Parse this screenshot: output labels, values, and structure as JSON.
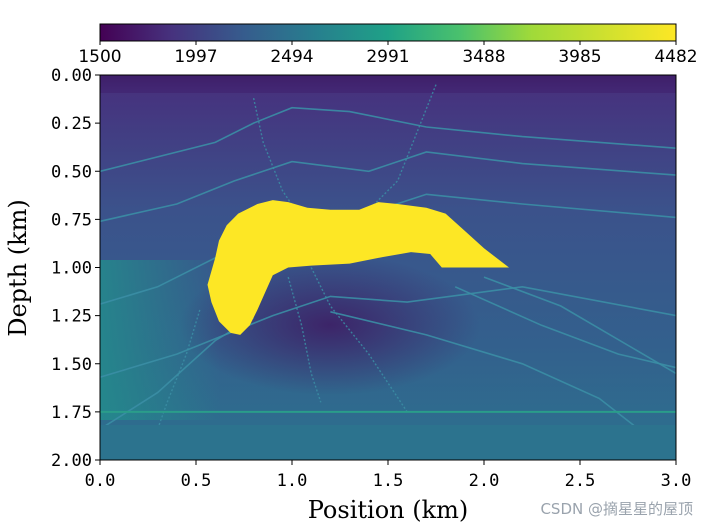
{
  "chart_data": {
    "type": "heatmap",
    "title": "",
    "xlabel": "Position (km)",
    "ylabel": "Depth (km)",
    "xlim": [
      0.0,
      3.0
    ],
    "ylim": [
      2.0,
      0.0
    ],
    "x_ticks": [
      "0.0",
      "0.5",
      "1.0",
      "1.5",
      "2.0",
      "2.5",
      "3.0"
    ],
    "y_ticks": [
      "0.00",
      "0.25",
      "0.50",
      "0.75",
      "1.00",
      "1.25",
      "1.50",
      "1.75",
      "2.00"
    ],
    "colorbar": {
      "colormap": "viridis",
      "location": "top",
      "min": 1500,
      "max": 4482,
      "ticks": [
        "1500",
        "1997",
        "2494",
        "2991",
        "3488",
        "3985",
        "4482"
      ]
    },
    "salt_body": {
      "label": "high-velocity salt body",
      "velocity": 4482,
      "outline_km": [
        [
          0.56,
          1.09
        ],
        [
          0.6,
          0.95
        ],
        [
          0.62,
          0.86
        ],
        [
          0.66,
          0.78
        ],
        [
          0.72,
          0.72
        ],
        [
          0.82,
          0.67
        ],
        [
          0.9,
          0.65
        ],
        [
          0.98,
          0.66
        ],
        [
          1.08,
          0.69
        ],
        [
          1.2,
          0.7
        ],
        [
          1.35,
          0.7
        ],
        [
          1.45,
          0.66
        ],
        [
          1.55,
          0.67
        ],
        [
          1.7,
          0.69
        ],
        [
          1.8,
          0.72
        ],
        [
          1.9,
          0.81
        ],
        [
          2.0,
          0.9
        ],
        [
          2.13,
          1.0
        ],
        [
          1.78,
          1.0
        ],
        [
          1.72,
          0.93
        ],
        [
          1.62,
          0.92
        ],
        [
          1.45,
          0.95
        ],
        [
          1.3,
          0.98
        ],
        [
          1.1,
          0.99
        ],
        [
          0.98,
          1.0
        ],
        [
          0.9,
          1.04
        ],
        [
          0.86,
          1.13
        ],
        [
          0.82,
          1.22
        ],
        [
          0.78,
          1.3
        ],
        [
          0.73,
          1.35
        ],
        [
          0.68,
          1.34
        ],
        [
          0.62,
          1.28
        ],
        [
          0.58,
          1.18
        ]
      ]
    },
    "background_velocity": {
      "top": 1650,
      "middle": 2300,
      "bottom": 2700
    },
    "reflector_depth_km": 1.75
  },
  "watermark": "CSDN @摘星星的屋顶",
  "colors": {
    "salt": "#fde725",
    "reflector": "#2a9d8a",
    "faults": "#3b8ea5"
  }
}
